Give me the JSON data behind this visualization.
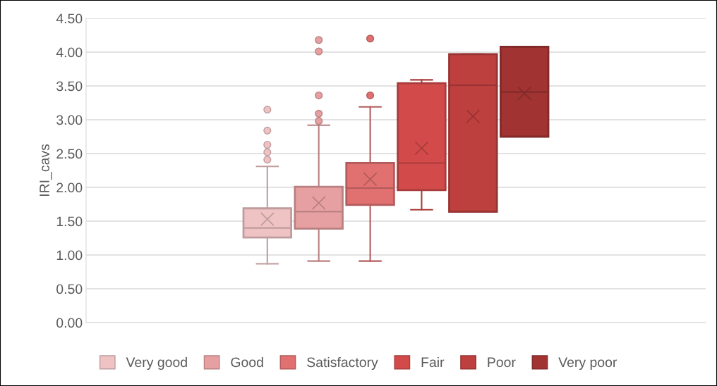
{
  "chart_data": {
    "type": "box",
    "ylabel": "IRI_cavs",
    "categories": [
      null
    ],
    "ylim": [
      0,
      4.5
    ],
    "yticks": [
      {
        "value": 0,
        "label": "0.00"
      },
      {
        "value": 0.5,
        "label": "0.50"
      },
      {
        "value": 1,
        "label": "1.00"
      },
      {
        "value": 1.5,
        "label": "1.50"
      },
      {
        "value": 2,
        "label": "2.00"
      },
      {
        "value": 2.5,
        "label": "2.50"
      },
      {
        "value": 3,
        "label": "3.00"
      },
      {
        "value": 3.5,
        "label": "3.50"
      },
      {
        "value": 4,
        "label": "4.00"
      },
      {
        "value": 4.5,
        "label": "4.50"
      }
    ],
    "grid": "y",
    "legend": "bottom",
    "series": [
      {
        "name": "Very good",
        "color": "#efc3c4",
        "boxes": [
          {
            "low": 0.87,
            "q1": 1.26,
            "median": 1.4,
            "q3": 1.69,
            "high": 2.31,
            "mean": 1.53,
            "outliers": [
              2.41,
              2.52,
              2.63,
              2.84,
              3.15
            ]
          }
        ]
      },
      {
        "name": "Good",
        "color": "#e7a0a1",
        "boxes": [
          {
            "low": 0.91,
            "q1": 1.39,
            "median": 1.64,
            "q3": 2.01,
            "high": 2.92,
            "mean": 1.77,
            "outliers": [
              2.98,
              3.09,
              3.36,
              4.01,
              4.18
            ]
          }
        ]
      },
      {
        "name": "Satisfactory",
        "color": "#e07170",
        "boxes": [
          {
            "low": 0.91,
            "q1": 1.74,
            "median": 1.99,
            "q3": 2.36,
            "high": 3.19,
            "mean": 2.12,
            "outliers": [
              3.36,
              4.2
            ]
          }
        ]
      },
      {
        "name": "Fair",
        "color": "#d24b4a",
        "boxes": [
          {
            "low": 1.67,
            "q1": 1.96,
            "median": 2.36,
            "q3": 3.54,
            "high": 3.59,
            "mean": 2.58
          }
        ]
      },
      {
        "name": "Poor",
        "color": "#bd403e",
        "boxes": [
          {
            "low": 1.64,
            "q1": 1.64,
            "median": 3.51,
            "q3": 3.97,
            "high": 3.97,
            "mean": 3.05
          }
        ]
      },
      {
        "name": "Very poor",
        "color": "#a13433",
        "boxes": [
          {
            "low": 2.75,
            "q1": 2.75,
            "median": 3.41,
            "q3": 4.08,
            "high": 4.08,
            "mean": 3.39
          }
        ]
      }
    ]
  }
}
